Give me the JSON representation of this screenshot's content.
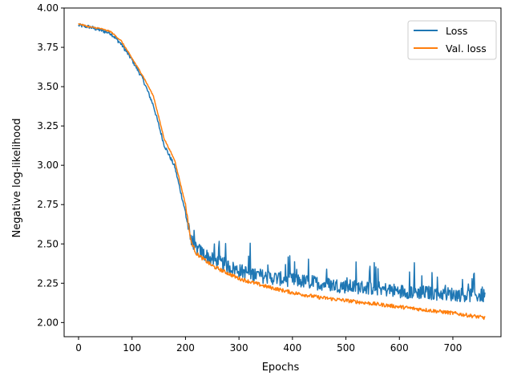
{
  "chart_data": {
    "type": "line",
    "title": "",
    "xlabel": "Epochs",
    "ylabel": "Negative log-likelihood",
    "xlim": [
      -27,
      790
    ],
    "ylim": [
      1.91,
      4.0
    ],
    "x_ticks": [
      0,
      100,
      200,
      300,
      400,
      500,
      600,
      700
    ],
    "y_ticks": [
      2.0,
      2.25,
      2.5,
      2.75,
      3.0,
      3.25,
      3.5,
      3.75,
      4.0
    ],
    "x_tick_labels": [
      "0",
      "100",
      "200",
      "300",
      "400",
      "500",
      "600",
      "700"
    ],
    "y_tick_labels": [
      "2.00",
      "2.25",
      "2.50",
      "2.75",
      "3.00",
      "3.25",
      "3.50",
      "3.75",
      "4.00"
    ],
    "grid": false,
    "legend_position": "top-right",
    "epochs": 760,
    "series": [
      {
        "name": "Loss",
        "color": "#1f77b4",
        "noisy": true,
        "x": [
          0,
          20,
          40,
          60,
          80,
          100,
          120,
          140,
          160,
          180,
          200,
          210,
          220,
          250,
          300,
          350,
          400,
          450,
          500,
          550,
          600,
          650,
          700,
          760
        ],
        "y": [
          3.89,
          3.88,
          3.86,
          3.84,
          3.77,
          3.67,
          3.55,
          3.38,
          3.13,
          2.99,
          2.7,
          2.52,
          2.47,
          2.4,
          2.33,
          2.29,
          2.27,
          2.25,
          2.23,
          2.22,
          2.2,
          2.19,
          2.18,
          2.17
        ]
      },
      {
        "name": "Val. loss",
        "color": "#ff7f0e",
        "noisy": false,
        "x": [
          0,
          20,
          40,
          60,
          80,
          100,
          120,
          140,
          160,
          180,
          200,
          210,
          220,
          250,
          300,
          350,
          400,
          450,
          500,
          550,
          600,
          650,
          700,
          760
        ],
        "y": [
          3.9,
          3.88,
          3.87,
          3.85,
          3.79,
          3.68,
          3.57,
          3.44,
          3.17,
          3.03,
          2.75,
          2.52,
          2.44,
          2.36,
          2.28,
          2.23,
          2.19,
          2.16,
          2.14,
          2.12,
          2.1,
          2.08,
          2.06,
          2.03
        ]
      }
    ]
  }
}
